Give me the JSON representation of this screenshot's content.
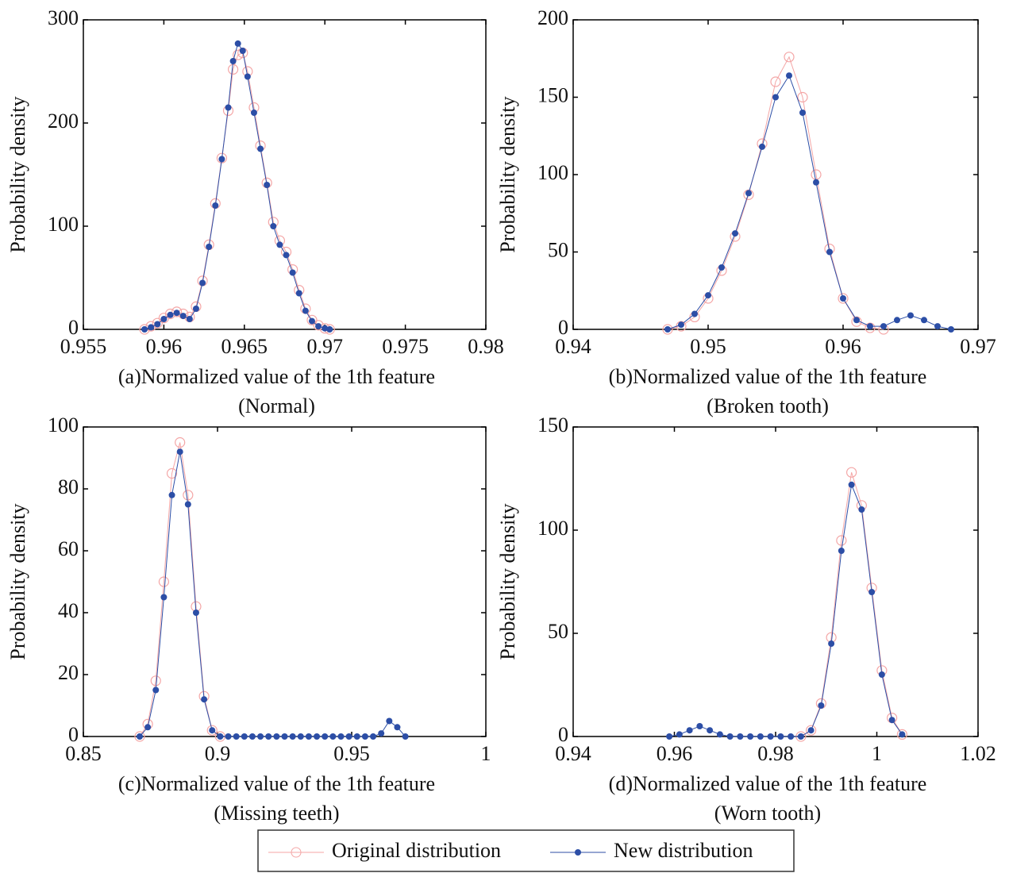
{
  "chart_data": [
    {
      "type": "line",
      "xlabel": "(a)Normalized value of the 1th feature",
      "subtitle": "(Normal)",
      "ylabel": "Probability density",
      "xlim": [
        0.955,
        0.98
      ],
      "xticks": [
        0.955,
        0.96,
        0.965,
        0.97,
        0.975,
        0.98
      ],
      "ylim": [
        0,
        300
      ],
      "yticks": [
        0,
        100,
        200,
        300
      ],
      "x": [
        0.9588,
        0.9592,
        0.9596,
        0.96,
        0.9604,
        0.9608,
        0.9612,
        0.9616,
        0.962,
        0.9624,
        0.9628,
        0.9632,
        0.9636,
        0.964,
        0.9643,
        0.9646,
        0.9649,
        0.9652,
        0.9656,
        0.966,
        0.9664,
        0.9668,
        0.9672,
        0.9676,
        0.968,
        0.9684,
        0.9688,
        0.9692,
        0.9696,
        0.97,
        0.9703
      ],
      "series": [
        {
          "values": [
            0,
            3,
            6,
            11,
            15,
            17,
            15,
            12,
            22,
            47,
            82,
            122,
            166,
            212,
            252,
            266,
            268,
            250,
            215,
            178,
            142,
            104,
            86,
            75,
            58,
            38,
            20,
            9,
            4,
            1,
            0
          ]
        },
        {
          "values": [
            0,
            2,
            5,
            10,
            14,
            16,
            13,
            10,
            20,
            45,
            80,
            120,
            165,
            215,
            260,
            277,
            270,
            245,
            210,
            175,
            140,
            100,
            82,
            72,
            55,
            35,
            18,
            8,
            3,
            1,
            0
          ]
        }
      ]
    },
    {
      "type": "line",
      "xlabel": "(b)Normalized value of the 1th feature",
      "subtitle": "(Broken tooth)",
      "ylabel": "Probability density",
      "xlim": [
        0.94,
        0.97
      ],
      "xticks": [
        0.94,
        0.95,
        0.96,
        0.97
      ],
      "ylim": [
        0,
        200
      ],
      "yticks": [
        0,
        50,
        100,
        150,
        200
      ],
      "x": [
        0.947,
        0.948,
        0.949,
        0.95,
        0.951,
        0.952,
        0.953,
        0.954,
        0.955,
        0.956,
        0.957,
        0.958,
        0.959,
        0.96,
        0.961,
        0.962,
        0.963,
        0.964,
        0.965,
        0.966,
        0.967,
        0.968
      ],
      "series": [
        {
          "values": [
            0,
            2,
            8,
            20,
            38,
            60,
            87,
            120,
            160,
            176,
            150,
            100,
            52,
            20,
            5,
            1,
            0,
            null,
            null,
            null,
            null,
            null
          ]
        },
        {
          "values": [
            0,
            3,
            10,
            22,
            40,
            62,
            88,
            118,
            150,
            164,
            140,
            95,
            50,
            20,
            6,
            2,
            2,
            6,
            9,
            6,
            2,
            0
          ]
        }
      ]
    },
    {
      "type": "line",
      "xlabel": "(c)Normalized value of the 1th feature",
      "subtitle": "(Missing teeth)",
      "ylabel": "Probability density",
      "xlim": [
        0.85,
        1
      ],
      "xticks": [
        0.85,
        0.9,
        0.95,
        1
      ],
      "ylim": [
        0,
        100
      ],
      "yticks": [
        0,
        20,
        40,
        60,
        80,
        100
      ],
      "x": [
        0.871,
        0.874,
        0.877,
        0.88,
        0.883,
        0.886,
        0.889,
        0.892,
        0.895,
        0.898,
        0.901,
        0.904,
        0.907,
        0.91,
        0.913,
        0.916,
        0.919,
        0.922,
        0.925,
        0.928,
        0.931,
        0.934,
        0.937,
        0.94,
        0.943,
        0.946,
        0.949,
        0.952,
        0.955,
        0.958,
        0.961,
        0.964,
        0.967,
        0.97
      ],
      "series": [
        {
          "values": [
            0,
            4,
            18,
            50,
            85,
            95,
            78,
            42,
            13,
            2,
            0,
            null,
            null,
            null,
            null,
            null,
            null,
            null,
            null,
            null,
            null,
            null,
            null,
            null,
            null,
            null,
            null,
            null,
            null,
            null,
            null,
            null,
            null,
            null
          ]
        },
        {
          "values": [
            0,
            3,
            15,
            45,
            78,
            92,
            75,
            40,
            12,
            2,
            0,
            0,
            0,
            0,
            0,
            0,
            0,
            0,
            0,
            0,
            0,
            0,
            0,
            0,
            0,
            0,
            0,
            0,
            0,
            0,
            1,
            5,
            3,
            0
          ]
        }
      ]
    },
    {
      "type": "line",
      "xlabel": "(d)Normalized value of the 1th feature",
      "subtitle": "(Worn tooth)",
      "ylabel": "Probability density",
      "xlim": [
        0.94,
        1.02
      ],
      "xticks": [
        0.94,
        0.96,
        0.98,
        1,
        1.02
      ],
      "ylim": [
        0,
        150
      ],
      "yticks": [
        0,
        50,
        100,
        150
      ],
      "x": [
        0.959,
        0.961,
        0.963,
        0.965,
        0.967,
        0.969,
        0.971,
        0.973,
        0.975,
        0.977,
        0.979,
        0.981,
        0.983,
        0.985,
        0.987,
        0.989,
        0.991,
        0.993,
        0.995,
        0.997,
        0.999,
        1.001,
        1.003,
        1.005
      ],
      "series": [
        {
          "values": [
            null,
            null,
            null,
            null,
            null,
            null,
            null,
            null,
            null,
            null,
            null,
            null,
            null,
            0,
            3,
            16,
            48,
            95,
            128,
            112,
            72,
            32,
            9,
            1
          ]
        },
        {
          "values": [
            0,
            1,
            3,
            5,
            3,
            1,
            0,
            0,
            0,
            0,
            0,
            0,
            0,
            0,
            3,
            15,
            45,
            90,
            122,
            110,
            70,
            30,
            8,
            1
          ]
        }
      ]
    }
  ],
  "legend": {
    "entries": [
      {
        "name": "Original distribution",
        "color": "#f4a6a6",
        "marker": "open-circle"
      },
      {
        "name": "New distribution",
        "color": "#2c4ea6",
        "marker": "filled-dot"
      }
    ]
  }
}
